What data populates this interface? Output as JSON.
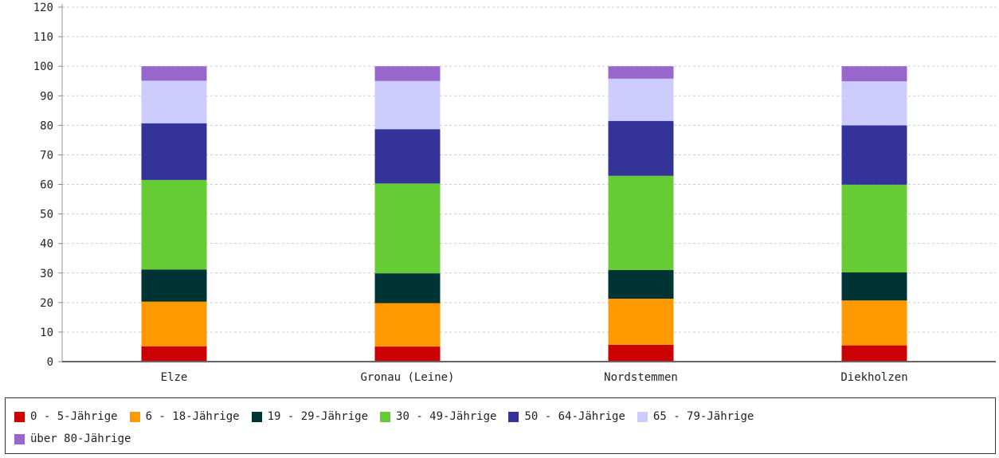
{
  "chart_data": {
    "type": "bar",
    "stacked": true,
    "categories": [
      "Elze",
      "Gronau (Leine)",
      "Nordstemmen",
      "Diekholzen"
    ],
    "ylim": [
      0,
      120
    ],
    "yticks": [
      0,
      10,
      20,
      30,
      40,
      50,
      60,
      70,
      80,
      90,
      100,
      110,
      120
    ],
    "grid": true,
    "legend_position": "bottom",
    "series": [
      {
        "name": "0 - 5-Jährige",
        "color": "#cc0000",
        "values": [
          5.2,
          5.1,
          5.7,
          5.5
        ]
      },
      {
        "name": "6 - 18-Jährige",
        "color": "#ff9900",
        "values": [
          15.1,
          14.7,
          15.6,
          15.2
        ]
      },
      {
        "name": "19 - 29-Jährige",
        "color": "#003333",
        "values": [
          10.9,
          10.1,
          9.7,
          9.5
        ]
      },
      {
        "name": "30 - 49-Jährige",
        "color": "#66cc33",
        "values": [
          30.3,
          30.4,
          31.9,
          29.7
        ]
      },
      {
        "name": "50 - 64-Jährige",
        "color": "#333399",
        "values": [
          19.2,
          18.4,
          18.6,
          20.1
        ]
      },
      {
        "name": "65 - 79-Jährige",
        "color": "#ccccff",
        "values": [
          14.4,
          16.3,
          14.3,
          14.9
        ]
      },
      {
        "name": "über 80-Jährige",
        "color": "#9966cc",
        "values": [
          4.9,
          5.0,
          4.2,
          5.1
        ]
      }
    ]
  }
}
